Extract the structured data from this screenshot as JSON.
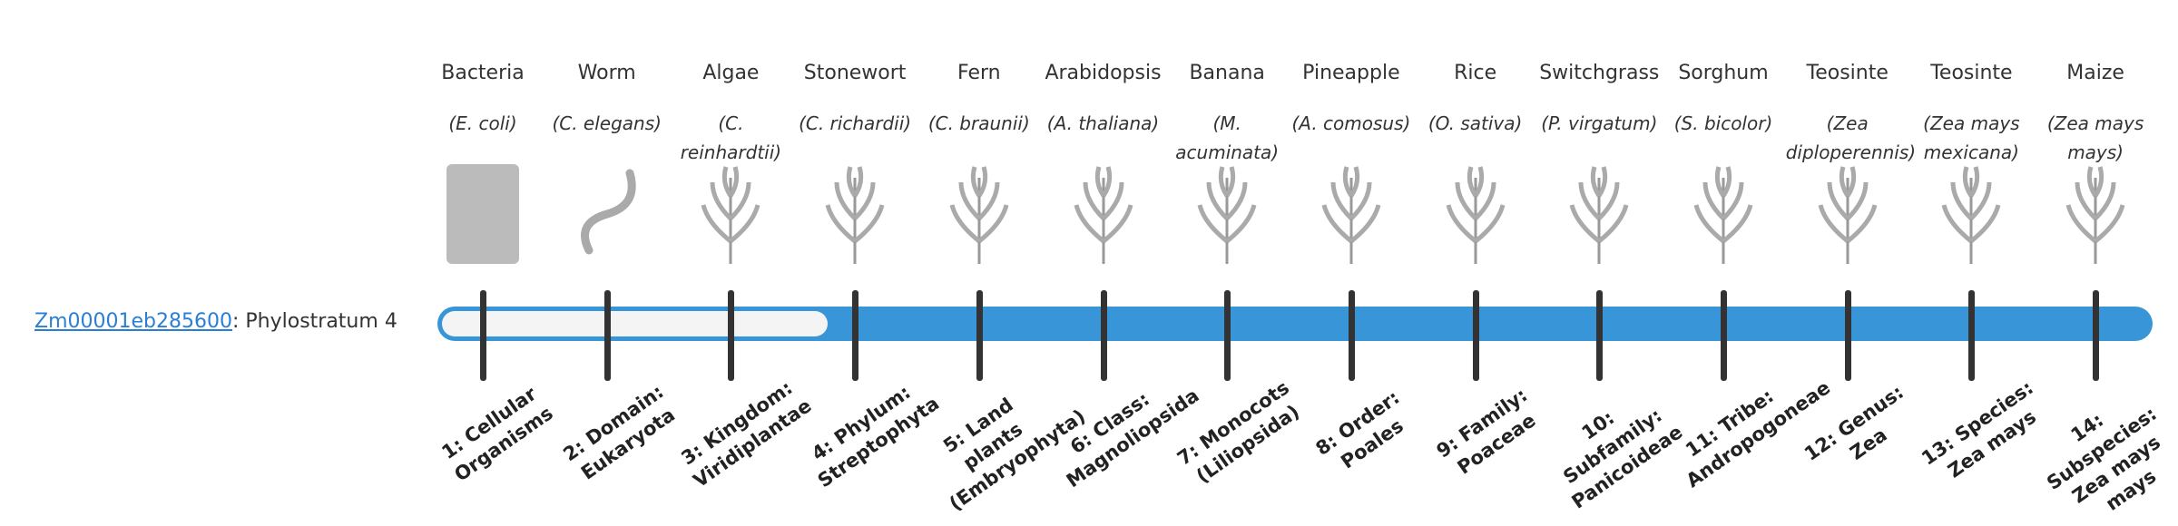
{
  "gene": {
    "id": "Zm00001eb285600",
    "label": ": Phylostratum",
    "stratum": 4
  },
  "organisms": [
    {
      "name": "Bacteria",
      "species": "(E. coli)"
    },
    {
      "name": "Worm",
      "species": "(C. elegans)"
    },
    {
      "name": "Algae",
      "species": "(C. reinhardtii)"
    },
    {
      "name": "Stonewort",
      "species": "(C. richardii)"
    },
    {
      "name": "Fern",
      "species": "(C. braunii)"
    },
    {
      "name": "Arabidopsis",
      "species": "(A. thaliana)"
    },
    {
      "name": "Banana",
      "species": "(M. acuminata)"
    },
    {
      "name": "Pineapple",
      "species": "(A. comosus)"
    },
    {
      "name": "Rice",
      "species": "(O. sativa)"
    },
    {
      "name": "Switchgrass",
      "species": "(P. virgatum)"
    },
    {
      "name": "Sorghum",
      "species": "(S. bicolor)"
    },
    {
      "name": "Teosinte",
      "species": "(Zea diploperennis)"
    },
    {
      "name": "Teosinte",
      "species": "(Zea mays mexicana)"
    },
    {
      "name": "Maize",
      "species": "(Zea mays mays)"
    }
  ],
  "strata": [
    "1: Cellular Organisms",
    "2: Domain: Eukaryota",
    "3: Kingdom: Viridiplantae",
    "4: Phylum: Streptophyta",
    "5: Land plants (Embryophyta)",
    "6: Class: Magnoliopsida",
    "7: Monocots (Liliopsida)",
    "8: Order: Poales",
    "9: Family: Poaceae",
    "10: Subfamily: Panicoideae",
    "11: Tribe: Andropogoneae",
    "12: Genus: Zea",
    "13: Species: Zea mays",
    "14: Subspecies: Zea mays mays"
  ]
}
